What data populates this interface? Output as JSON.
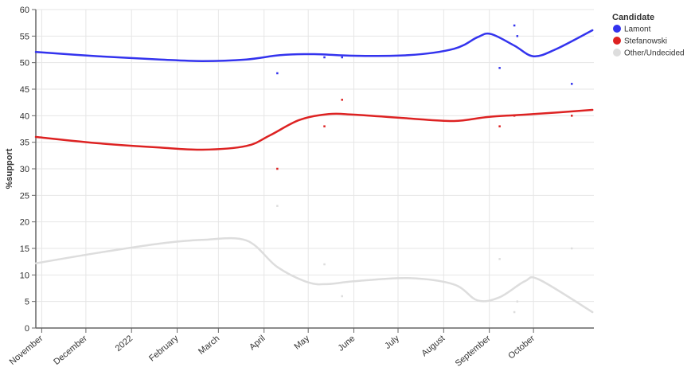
{
  "chart_data": {
    "type": "line",
    "ylabel": "%support",
    "ylim": [
      0,
      60
    ],
    "yticks": [
      0,
      5,
      10,
      15,
      20,
      25,
      30,
      35,
      40,
      45,
      50,
      55,
      60
    ],
    "xlim": [
      "2021-10-28",
      "2022-11-11"
    ],
    "xticks": [
      {
        "date": "2021-11-01",
        "label": "November"
      },
      {
        "date": "2021-12-01",
        "label": "December"
      },
      {
        "date": "2022-01-01",
        "label": "2022"
      },
      {
        "date": "2022-02-01",
        "label": "February"
      },
      {
        "date": "2022-03-01",
        "label": "March"
      },
      {
        "date": "2022-04-01",
        "label": "April"
      },
      {
        "date": "2022-05-01",
        "label": "May"
      },
      {
        "date": "2022-06-01",
        "label": "June"
      },
      {
        "date": "2022-07-01",
        "label": "July"
      },
      {
        "date": "2022-08-01",
        "label": "August"
      },
      {
        "date": "2022-09-01",
        "label": "September"
      },
      {
        "date": "2022-10-01",
        "label": "October"
      }
    ],
    "grid": true,
    "legend": {
      "title": "Candidate",
      "position": "top-right"
    },
    "series": [
      {
        "name": "Lamont",
        "color": "#3333ee",
        "trend": [
          [
            "2021-10-28",
            52
          ],
          [
            "2021-12-10",
            51.2
          ],
          [
            "2022-01-20",
            50.6
          ],
          [
            "2022-02-18",
            50.3
          ],
          [
            "2022-03-20",
            50.6
          ],
          [
            "2022-04-12",
            51.4
          ],
          [
            "2022-05-05",
            51.6
          ],
          [
            "2022-06-01",
            51.3
          ],
          [
            "2022-07-08",
            51.4
          ],
          [
            "2022-08-08",
            52.6
          ],
          [
            "2022-08-24",
            54.8
          ],
          [
            "2022-09-02",
            55.4
          ],
          [
            "2022-09-18",
            53.2
          ],
          [
            "2022-10-01",
            51.2
          ],
          [
            "2022-10-16",
            52.5
          ],
          [
            "2022-11-10",
            56.1
          ]
        ],
        "points": [
          [
            "2022-04-10",
            48
          ],
          [
            "2022-05-12",
            51
          ],
          [
            "2022-05-24",
            51
          ],
          [
            "2022-09-08",
            49
          ],
          [
            "2022-09-18",
            57
          ],
          [
            "2022-09-20",
            55
          ],
          [
            "2022-10-27",
            46
          ]
        ]
      },
      {
        "name": "Stefanowski",
        "color": "#dd2222",
        "trend": [
          [
            "2021-10-28",
            36
          ],
          [
            "2021-12-10",
            34.8
          ],
          [
            "2022-01-20",
            34
          ],
          [
            "2022-02-18",
            33.6
          ],
          [
            "2022-03-20",
            34.3
          ],
          [
            "2022-04-05",
            36.3
          ],
          [
            "2022-04-25",
            39.2
          ],
          [
            "2022-05-15",
            40.3
          ],
          [
            "2022-06-01",
            40.2
          ],
          [
            "2022-07-08",
            39.5
          ],
          [
            "2022-08-08",
            39
          ],
          [
            "2022-09-01",
            39.8
          ],
          [
            "2022-10-01",
            40.3
          ],
          [
            "2022-11-10",
            41.1
          ]
        ],
        "points": [
          [
            "2022-04-10",
            30
          ],
          [
            "2022-05-12",
            38
          ],
          [
            "2022-05-24",
            43
          ],
          [
            "2022-09-08",
            38
          ],
          [
            "2022-09-18",
            40
          ],
          [
            "2022-10-27",
            40
          ]
        ]
      },
      {
        "name": "Other/Undecided",
        "color": "#dddddd",
        "trend": [
          [
            "2021-10-28",
            12.2
          ],
          [
            "2021-12-10",
            14.2
          ],
          [
            "2022-01-20",
            15.9
          ],
          [
            "2022-02-18",
            16.6
          ],
          [
            "2022-03-20",
            16.5
          ],
          [
            "2022-04-10",
            11.5
          ],
          [
            "2022-05-01",
            8.6
          ],
          [
            "2022-05-15",
            8.3
          ],
          [
            "2022-06-01",
            8.8
          ],
          [
            "2022-07-08",
            9.4
          ],
          [
            "2022-08-08",
            8.2
          ],
          [
            "2022-08-24",
            5.2
          ],
          [
            "2022-09-08",
            5.8
          ],
          [
            "2022-09-25",
            8.8
          ],
          [
            "2022-10-05",
            9.1
          ],
          [
            "2022-11-10",
            3
          ]
        ],
        "points": [
          [
            "2022-04-10",
            23
          ],
          [
            "2022-05-12",
            12
          ],
          [
            "2022-05-24",
            6
          ],
          [
            "2022-09-08",
            13
          ],
          [
            "2022-09-18",
            3
          ],
          [
            "2022-09-20",
            5
          ],
          [
            "2022-10-27",
            15
          ]
        ]
      }
    ]
  }
}
